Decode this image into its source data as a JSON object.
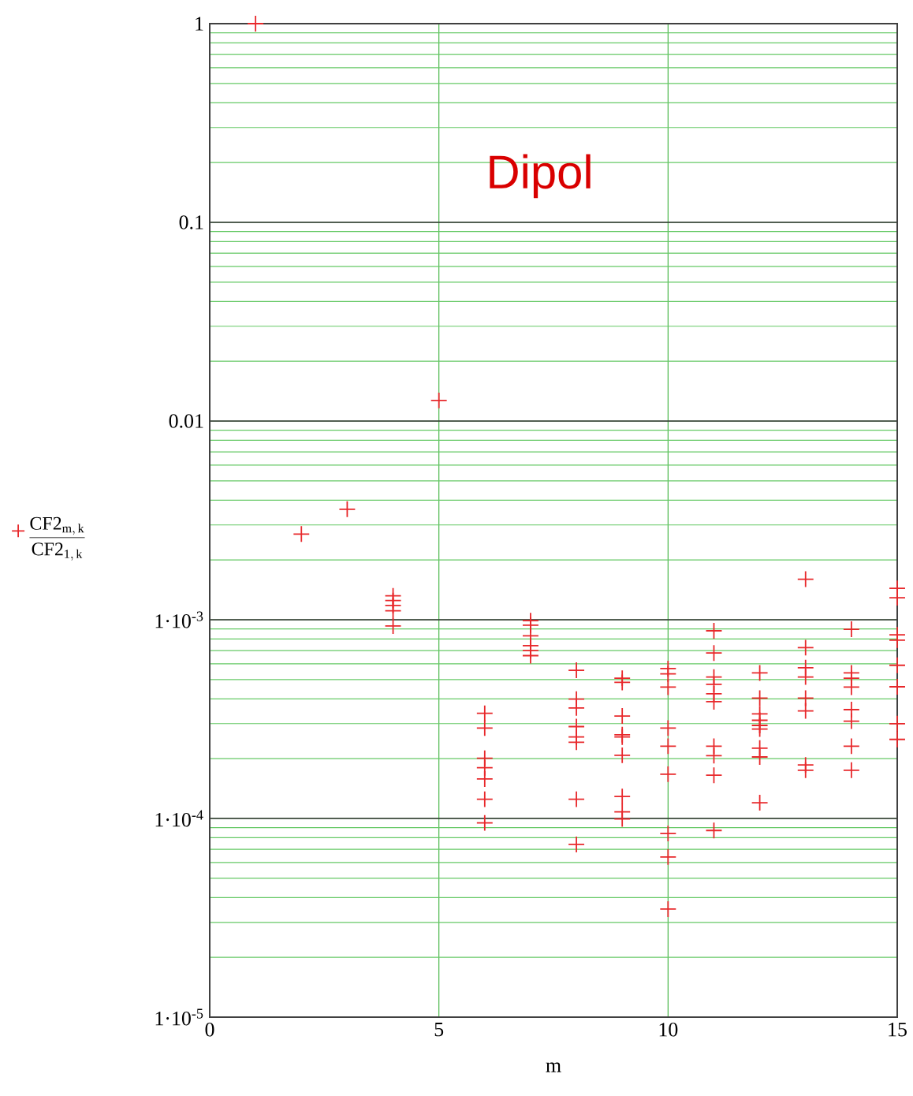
{
  "chart_data": {
    "type": "scatter",
    "title": "Dipol",
    "xlabel": "m",
    "log": "y",
    "grid": true,
    "marker": "cross",
    "legend": "left",
    "xlim": [
      0,
      15
    ],
    "ylim": [
      1e-05,
      1
    ],
    "xticks": [
      0,
      5,
      10,
      15
    ],
    "yticks": [
      {
        "value": 1e-05,
        "label": "1·10$^{-5}$"
      },
      {
        "value": 0.0001,
        "label": "1·10$^{-4}$"
      },
      {
        "value": 0.001,
        "label": "1·10$^{-3}$"
      },
      0.01,
      0.1,
      1
    ],
    "series": [
      {
        "name": "\\frac{\\mathrm{CF2}_{\\mathrm{m,\\,k}}}{\\mathrm{CF2}_{\\mathrm{1,\\,k}}}",
        "color": "#e8282b",
        "x": [
          1,
          2,
          3,
          4,
          4,
          4,
          4,
          4,
          5,
          6,
          6,
          6,
          6,
          6,
          6,
          6,
          7,
          7,
          7,
          7,
          7,
          7,
          8,
          8,
          8,
          8,
          8,
          8,
          8,
          8,
          9,
          9,
          9,
          9,
          9,
          9,
          9,
          9,
          9,
          10,
          10,
          10,
          10,
          10,
          10,
          10,
          10,
          10,
          11,
          11,
          11,
          11,
          11,
          11,
          11,
          11,
          11,
          11,
          12,
          12,
          12,
          12,
          12,
          12,
          12,
          12,
          12,
          13,
          13,
          13,
          13,
          13,
          13,
          13,
          13,
          14,
          14,
          14,
          14,
          14,
          14,
          14,
          14,
          15,
          15,
          15,
          15,
          15,
          15,
          15,
          15
        ],
        "values": [
          1,
          0.0027,
          0.0036,
          0.00132,
          0.00125,
          0.00118,
          0.00111,
          0.00093,
          0.0127,
          0.000338,
          0.000285,
          0.000201,
          0.00018,
          0.000158,
          0.000125,
          9.5e-05,
          0.00099,
          0.00094,
          0.00083,
          0.00074,
          0.0007,
          0.00066,
          0.000557,
          0.000399,
          0.00036,
          0.00029,
          0.000257,
          0.000242,
          0.000125,
          7.4e-05,
          0.000508,
          0.000484,
          0.000328,
          0.000264,
          0.000257,
          0.000208,
          0.000129,
          0.000108,
          9.95e-05,
          0.000568,
          0.000534,
          0.000458,
          0.000285,
          0.000231,
          0.000167,
          8.4e-05,
          6.4e-05,
          3.5e-05,
          0.00088,
          0.00068,
          0.000515,
          0.000473,
          0.000424,
          0.000387,
          0.000231,
          0.000207,
          0.000165,
          8.7e-05,
          0.00054,
          0.000403,
          0.000336,
          0.000312,
          0.000294,
          0.000282,
          0.000226,
          0.000204,
          0.00012,
          0.0016,
          0.000724,
          0.000574,
          0.000515,
          0.000403,
          0.000348,
          0.000186,
          0.000175,
          0.000896,
          0.00054,
          0.000508,
          0.000458,
          0.000353,
          0.000309,
          0.000231,
          0.000175,
          0.00144,
          0.00129,
          0.00084,
          0.00079,
          0.00059,
          0.00046,
          0.0003,
          0.00025
        ]
      }
    ]
  }
}
